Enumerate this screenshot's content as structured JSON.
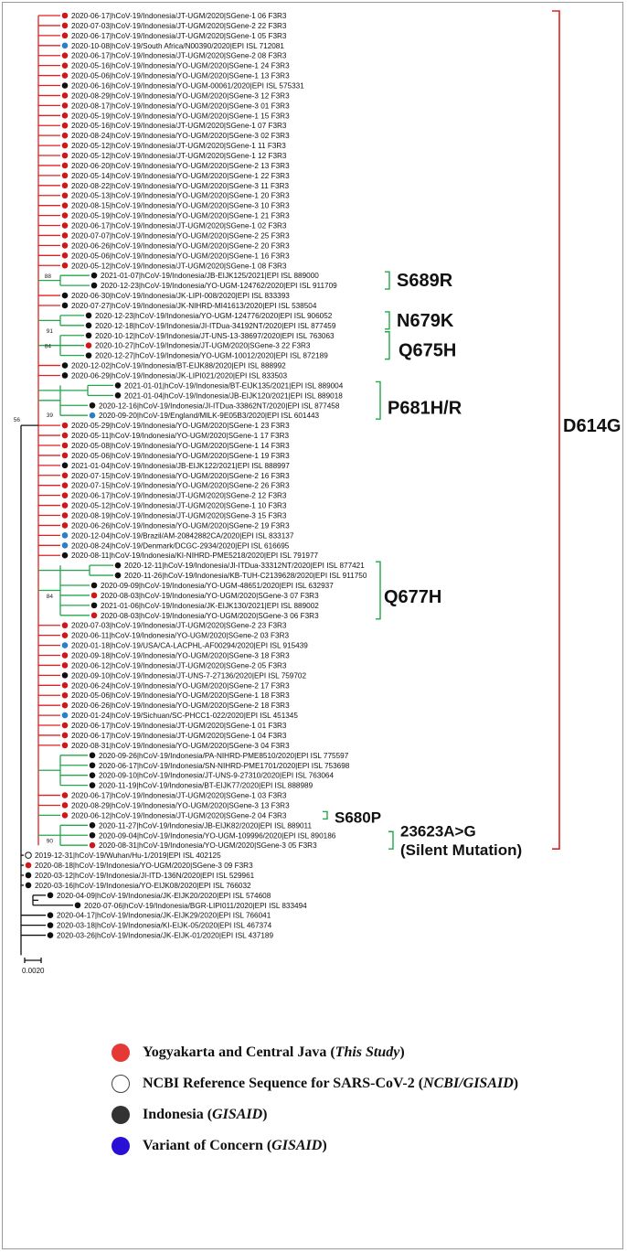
{
  "colors": {
    "study": "#e53935",
    "reference": "#ffffff",
    "indonesia": "#333333",
    "voc": "#2a0fd6",
    "leaf_red": "#cc1a1a",
    "leaf_blue": "#2a7fc6",
    "leaf_black": "#111111",
    "branch_red": "#e02020",
    "branch_green": "#22a84a",
    "branch_black": "#111111"
  },
  "tree": {
    "leaves": [
      {
        "label": "2020-06-17|hCoV-19/Indonesia/JT-UGM/2020|SGene-1 06 F3R3",
        "group": "study"
      },
      {
        "label": "2020-07-03|hCoV-19/Indonesia/JT-UGM/2020|SGene-2 22 F3R3",
        "group": "study"
      },
      {
        "label": "2020-06-17|hCoV-19/Indonesia/JT-UGM/2020|SGene-1 05 F3R3",
        "group": "study"
      },
      {
        "label": "2020-10-08|hCoV-19/South Africa/N00390/2020|EPI ISL 712081",
        "group": "voc"
      },
      {
        "label": "2020-06-17|hCoV-19/Indonesia/JT-UGM/2020|SGene-2 08 F3R3",
        "group": "study"
      },
      {
        "label": "2020-05-16|hCoV-19/Indonesia/YO-UGM/2020|SGene-1 24 F3R3",
        "group": "study"
      },
      {
        "label": "2020-05-06|hCoV-19/Indonesia/YO-UGM/2020|SGene-1 13 F3R3",
        "group": "study"
      },
      {
        "label": "2020-06-16|hCoV-19/Indonesia/YO-UGM-00061/2020|EPI ISL 575331",
        "group": "indonesia"
      },
      {
        "label": "2020-08-29|hCoV-19/Indonesia/YO-UGM/2020|SGene-3 12 F3R3",
        "group": "study"
      },
      {
        "label": "2020-08-17|hCoV-19/Indonesia/YO-UGM/2020|SGene-3 01 F3R3",
        "group": "study"
      },
      {
        "label": "2020-05-19|hCoV-19/Indonesia/YO-UGM/2020|SGene-1 15 F3R3",
        "group": "study"
      },
      {
        "label": "2020-05-16|hCoV-19/Indonesia/JT-UGM/2020|SGene-1 07 F3R3",
        "group": "study"
      },
      {
        "label": "2020-08-24|hCoV-19/Indonesia/YO-UGM/2020|SGene-3 02 F3R3",
        "group": "study"
      },
      {
        "label": "2020-05-12|hCoV-19/Indonesia/JT-UGM/2020|SGene-1 11 F3R3",
        "group": "study"
      },
      {
        "label": "2020-05-12|hCoV-19/Indonesia/JT-UGM/2020|SGene-1 12 F3R3",
        "group": "study"
      },
      {
        "label": "2020-06-20|hCoV-19/Indonesia/YO-UGM/2020|SGene-2 13 F3R3",
        "group": "study"
      },
      {
        "label": "2020-05-14|hCoV-19/Indonesia/YO-UGM/2020|SGene-1 22 F3R3",
        "group": "study"
      },
      {
        "label": "2020-08-22|hCoV-19/Indonesia/YO-UGM/2020|SGene-3 11 F3R3",
        "group": "study"
      },
      {
        "label": "2020-05-13|hCoV-19/Indonesia/YO-UGM/2020|SGene-1 20 F3R3",
        "group": "study"
      },
      {
        "label": "2020-08-15|hCoV-19/Indonesia/YO-UGM/2020|SGene-3 10 F3R3",
        "group": "study"
      },
      {
        "label": "2020-05-19|hCoV-19/Indonesia/YO-UGM/2020|SGene-1 21 F3R3",
        "group": "study"
      },
      {
        "label": "2020-06-17|hCoV-19/Indonesia/JT-UGM/2020|SGene-1 02 F3R3",
        "group": "study"
      },
      {
        "label": "2020-07-07|hCoV-19/Indonesia/YO-UGM/2020|SGene-2 25 F3R3",
        "group": "study"
      },
      {
        "label": "2020-06-26|hCoV-19/Indonesia/YO-UGM/2020|SGene-2 20 F3R3",
        "group": "study"
      },
      {
        "label": "2020-05-06|hCoV-19/Indonesia/YO-UGM/2020|SGene-1 16 F3R3",
        "group": "study"
      },
      {
        "label": "2020-05-12|hCoV-19/Indonesia/JT-UGM/2020|SGene-1 08 F3R3",
        "group": "study"
      },
      {
        "label": "2021-01-07|hCoV-19/Indonesia/JB-EIJK125/2021|EPI ISL 889000",
        "group": "indonesia"
      },
      {
        "label": "2020-12-23|hCoV-19/Indonesia/YO-UGM-124762/2020|EPI ISL 911709",
        "group": "indonesia"
      },
      {
        "label": "2020-06-30|hCoV-19/Indonesia/JK-LIPI-008/2020|EPI ISL 833393",
        "group": "indonesia"
      },
      {
        "label": "2020-07-27|hCoV-19/Indonesia/JK-NIHRD-MI41613/2020|EPI ISL 538504",
        "group": "indonesia"
      },
      {
        "label": "2020-12-23|hCoV-19/Indonesia/YO-UGM-124776/2020|EPI ISL 906052",
        "group": "indonesia"
      },
      {
        "label": "2020-12-18|hCoV-19/Indonesia/JI-ITDua-34192NT/2020|EPI ISL 877459",
        "group": "indonesia"
      },
      {
        "label": "2020-10-12|hCoV-19/Indonesia/JT-UNS-13-38697/2020|EPI ISL 763063",
        "group": "indonesia"
      },
      {
        "label": "2020-10-27|hCoV-19/Indonesia/JT-UGM/2020|SGene-3 22 F3R3",
        "group": "study"
      },
      {
        "label": "2020-12-27|hCoV-19/Indonesia/YO-UGM-10012/2020|EPI ISL 872189",
        "group": "indonesia"
      },
      {
        "label": "2020-12-02|hCoV-19/Indonesia/BT-EIJK88/2020|EPI ISL 888992",
        "group": "indonesia"
      },
      {
        "label": "2020-06-29|hCoV-19/Indonesia/JK-LIPI021/2020|EPI ISL 833503",
        "group": "indonesia"
      },
      {
        "label": "2021-01-01|hCoV-19/Indonesia/BT-EIJK135/2021|EPI ISL 889004",
        "group": "indonesia"
      },
      {
        "label": "2021-01-04|hCoV-19/Indonesia/JB-EIJK120/2021|EPI ISL 889018",
        "group": "indonesia"
      },
      {
        "label": "2020-12-16|hCoV-19/Indonesia/JI-ITDua-33862NT/2020|EPI ISL 877458",
        "group": "indonesia"
      },
      {
        "label": "2020-09-20|hCoV-19/England/MILK-9E05B3/2020|EPI ISL 601443",
        "group": "voc"
      },
      {
        "label": "2020-05-29|hCoV-19/Indonesia/YO-UGM/2020|SGene-1 23 F3R3",
        "group": "study"
      },
      {
        "label": "2020-05-11|hCoV-19/Indonesia/YO-UGM/2020|SGene-1 17 F3R3",
        "group": "study"
      },
      {
        "label": "2020-05-08|hCoV-19/Indonesia/YO-UGM/2020|SGene-1 14 F3R3",
        "group": "study"
      },
      {
        "label": "2020-05-06|hCoV-19/Indonesia/YO-UGM/2020|SGene-1 19 F3R3",
        "group": "study"
      },
      {
        "label": "2021-01-04|hCoV-19/Indonesia/JB-EIJK122/2021|EPI ISL 888997",
        "group": "indonesia"
      },
      {
        "label": "2020-07-15|hCoV-19/Indonesia/YO-UGM/2020|SGene-2 16 F3R3",
        "group": "study"
      },
      {
        "label": "2020-07-15|hCoV-19/Indonesia/YO-UGM/2020|SGene-2 26 F3R3",
        "group": "study"
      },
      {
        "label": "2020-06-17|hCoV-19/Indonesia/JT-UGM/2020|SGene-2 12 F3R3",
        "group": "study"
      },
      {
        "label": "2020-05-12|hCoV-19/Indonesia/JT-UGM/2020|SGene-1 10 F3R3",
        "group": "study"
      },
      {
        "label": "2020-08-19|hCoV-19/Indonesia/JT-UGM/2020|SGene-3 15 F3R3",
        "group": "study"
      },
      {
        "label": "2020-06-26|hCoV-19/Indonesia/YO-UGM/2020|SGene-2 19 F3R3",
        "group": "study"
      },
      {
        "label": "2020-12-04|hCoV-19/Brazil/AM-20842882CA/2020|EPI ISL 833137",
        "group": "voc"
      },
      {
        "label": "2020-08-24|hCoV-19/Denmark/DCGC-2934/2020|EPI ISL 616695",
        "group": "voc"
      },
      {
        "label": "2020-08-11|hCoV-19/Indonesia/KI-NIHRD-PME5218/2020|EPI ISL 791977",
        "group": "indonesia"
      },
      {
        "label": "2020-12-11|hCoV-19/Indonesia/JI-ITDua-33312NT/2020|EPI ISL 877421",
        "group": "indonesia"
      },
      {
        "label": "2020-11-26|hCoV-19/Indonesia/KB-TUH-C2139628/2020|EPI ISL 911750",
        "group": "indonesia"
      },
      {
        "label": "2020-09-09|hCoV-19/Indonesia/YO-UGM-48651/2020|EPI ISL 632937",
        "group": "indonesia"
      },
      {
        "label": "2020-08-03|hCoV-19/Indonesia/YO-UGM/2020|SGene-3 07 F3R3",
        "group": "study"
      },
      {
        "label": "2021-01-06|hCoV-19/Indonesia/JK-EIJK130/2021|EPI ISL 889002",
        "group": "indonesia"
      },
      {
        "label": "2020-08-03|hCoV-19/Indonesia/YO-UGM/2020|SGene-3 06 F3R3",
        "group": "study"
      },
      {
        "label": "2020-07-03|hCoV-19/Indonesia/JT-UGM/2020|SGene-2 23 F3R3",
        "group": "study"
      },
      {
        "label": "2020-06-11|hCoV-19/Indonesia/YO-UGM/2020|SGene-2 03 F3R3",
        "group": "study"
      },
      {
        "label": "2020-01-18|hCoV-19/USA/CA-LACPHL-AF00294/2020|EPI ISL 915439",
        "group": "voc"
      },
      {
        "label": "2020-09-18|hCoV-19/Indonesia/YO-UGM/2020|SGene-3 18 F3R3",
        "group": "study"
      },
      {
        "label": "2020-06-12|hCoV-19/Indonesia/JT-UGM/2020|SGene-2 05 F3R3",
        "group": "study"
      },
      {
        "label": "2020-09-10|hCoV-19/Indonesia/JT-UNS-7-27136/2020|EPI ISL 759702",
        "group": "indonesia"
      },
      {
        "label": "2020-06-24|hCoV-19/Indonesia/YO-UGM/2020|SGene-2 17 F3R3",
        "group": "study"
      },
      {
        "label": "2020-05-06|hCoV-19/Indonesia/YO-UGM/2020|SGene-1 18 F3R3",
        "group": "study"
      },
      {
        "label": "2020-06-26|hCoV-19/Indonesia/YO-UGM/2020|SGene-2 18 F3R3",
        "group": "study"
      },
      {
        "label": "2020-01-24|hCoV-19/Sichuan/SC-PHCC1-022/2020|EPI ISL 451345",
        "group": "voc"
      },
      {
        "label": "2020-06-17|hCoV-19/Indonesia/JT-UGM/2020|SGene-1 01 F3R3",
        "group": "study"
      },
      {
        "label": "2020-06-17|hCoV-19/Indonesia/JT-UGM/2020|SGene-1 04 F3R3",
        "group": "study"
      },
      {
        "label": "2020-08-31|hCoV-19/Indonesia/YO-UGM/2020|SGene-3 04 F3R3",
        "group": "study"
      },
      {
        "label": "2020-09-26|hCoV-19/Indonesia/PA-NIHRD-PME8510/2020|EPI ISL 775597",
        "group": "indonesia"
      },
      {
        "label": "2020-06-17|hCoV-19/Indonesia/SN-NIHRD-PME1701/2020|EPI ISL 753698",
        "group": "indonesia"
      },
      {
        "label": "2020-09-10|hCoV-19/Indonesia/JT-UNS-9-27310/2020|EPI ISL 763064",
        "group": "indonesia"
      },
      {
        "label": "2020-11-19|hCoV-19/Indonesia/BT-EIJK77/2020|EPI ISL 888989",
        "group": "indonesia"
      },
      {
        "label": "2020-06-17|hCoV-19/Indonesia/JT-UGM/2020|SGene-1 03 F3R3",
        "group": "study"
      },
      {
        "label": "2020-08-29|hCoV-19/Indonesia/YO-UGM/2020|SGene-3 13 F3R3",
        "group": "study"
      },
      {
        "label": "2020-06-12|hCoV-19/Indonesia/JT-UGM/2020|SGene-2 04 F3R3",
        "group": "study"
      },
      {
        "label": "2020-11-27|hCoV-19/Indonesia/JB-EIJK82/2020|EPI ISL 889011",
        "group": "indonesia"
      },
      {
        "label": "2020-09-04|hCoV-19/Indonesia/YO-UGM-109996/2020|EPI ISL 890186",
        "group": "indonesia"
      },
      {
        "label": "2020-08-31|hCoV-19/Indonesia/YO-UGM/2020|SGene-3 05 F3R3",
        "group": "study"
      },
      {
        "label": "2019-12-31|hCoV-19/Wuhan/Hu-1/2019|EPI ISL 402125",
        "group": "reference"
      },
      {
        "label": "2020-08-18|hCoV-19/Indonesia/YO-UGM/2020|SGene-3 09 F3R3",
        "group": "study"
      },
      {
        "label": "2020-03-12|hCoV-19/Indonesia/JI-ITD-136N/2020|EPI ISL 529961",
        "group": "indonesia"
      },
      {
        "label": "2020-03-16|hCoV-19/Indonesia/YO-EIJK08/2020|EPI ISL 766032",
        "group": "indonesia"
      },
      {
        "label": "2020-04-09|hCoV-19/Indonesia/JK-EIJK20/2020|EPI ISL 574608",
        "group": "indonesia"
      },
      {
        "label": "2020-07-06|hCoV-19/Indonesia/BGR-LIPI011/2020|EPI ISL 833494",
        "group": "indonesia"
      },
      {
        "label": "2020-04-17|hCoV-19/Indonesia/JK-EIJK29/2020|EPI ISL 766041",
        "group": "indonesia"
      },
      {
        "label": "2020-03-18|hCoV-19/Indonesia/KI-EIJK-05/2020|EPI ISL 467374",
        "group": "indonesia"
      },
      {
        "label": "2020-03-26|hCoV-19/Indonesia/JK-EIJK-01/2020|EPI ISL 437189",
        "group": "indonesia"
      }
    ],
    "bootstrap": [
      "88",
      "91",
      "84",
      "39",
      "56",
      "84",
      "90"
    ],
    "mutations": [
      "S689R",
      "N679K",
      "Q675H",
      "P681H/R",
      "Q677H",
      "S680P",
      "23623A>G",
      "(Silent Mutation)",
      "D614G"
    ],
    "scale_bar_label": "0.0020"
  },
  "legend": [
    {
      "text": "Yogyakarta and Central Java (",
      "source": "This Study",
      "close": ")",
      "color": "#e53935"
    },
    {
      "text": "NCBI Reference Sequence for SARS-CoV-2 (",
      "source": "NCBI/GISAID",
      "close": ")",
      "color": "#ffffff"
    },
    {
      "text": "Indonesia (",
      "source": "GISAID",
      "close": ")",
      "color": "#333333"
    },
    {
      "text": "Variant of Concern (",
      "source": "GISAID",
      "close": ")",
      "color": "#2a0fd6"
    }
  ]
}
